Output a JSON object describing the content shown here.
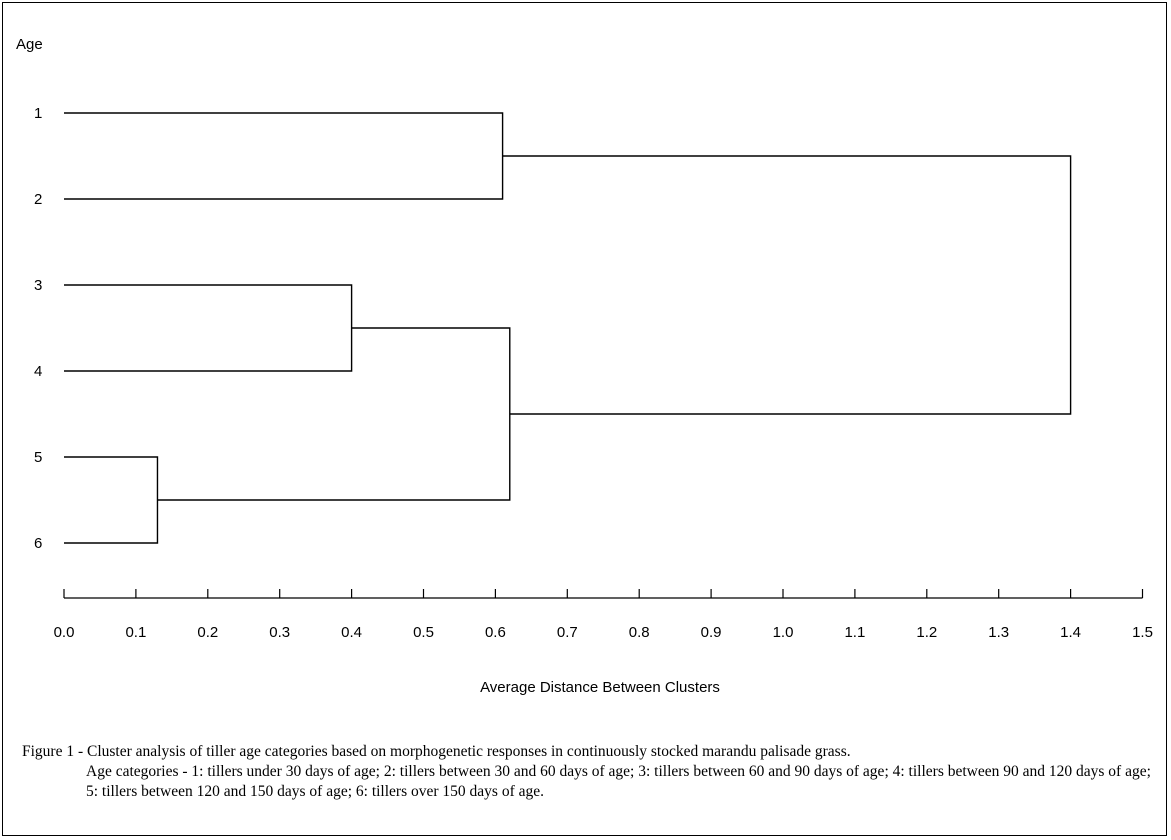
{
  "chart_data": {
    "type": "dendrogram",
    "title": "",
    "ylabel": "Age",
    "xlabel": "Average Distance Between Clusters",
    "leaves": [
      "1",
      "2",
      "3",
      "4",
      "5",
      "6"
    ],
    "x_ticks": [
      "0.0",
      "0.1",
      "0.2",
      "0.3",
      "0.4",
      "0.5",
      "0.6",
      "0.7",
      "0.8",
      "0.9",
      "1.0",
      "1.1",
      "1.2",
      "1.3",
      "1.4",
      "1.5"
    ],
    "xlim": [
      0,
      1.5
    ],
    "merges": [
      {
        "left": "5",
        "right": "6",
        "distance": 0.13
      },
      {
        "left": "3",
        "right": "4",
        "distance": 0.4
      },
      {
        "left": "1",
        "right": "2",
        "distance": 0.61
      },
      {
        "left": "3-4",
        "right": "5-6",
        "distance": 0.62
      },
      {
        "left": "1-2",
        "right": "3-6",
        "distance": 1.4
      }
    ],
    "line_color": "#000000"
  },
  "caption": {
    "line1": "Figure 1 - Cluster analysis of tiller age categories based on morphogenetic responses in continuously stocked marandu palisade grass.",
    "rest": "Age categories - 1: tillers under 30 days of age; 2: tillers between 30 and 60 days of age; 3: tillers between 60 and 90 days of age; 4: tillers between 90 and 120 days of age; 5: tillers between 120 and 150 days of age; 6: tillers over 150 days of age."
  }
}
